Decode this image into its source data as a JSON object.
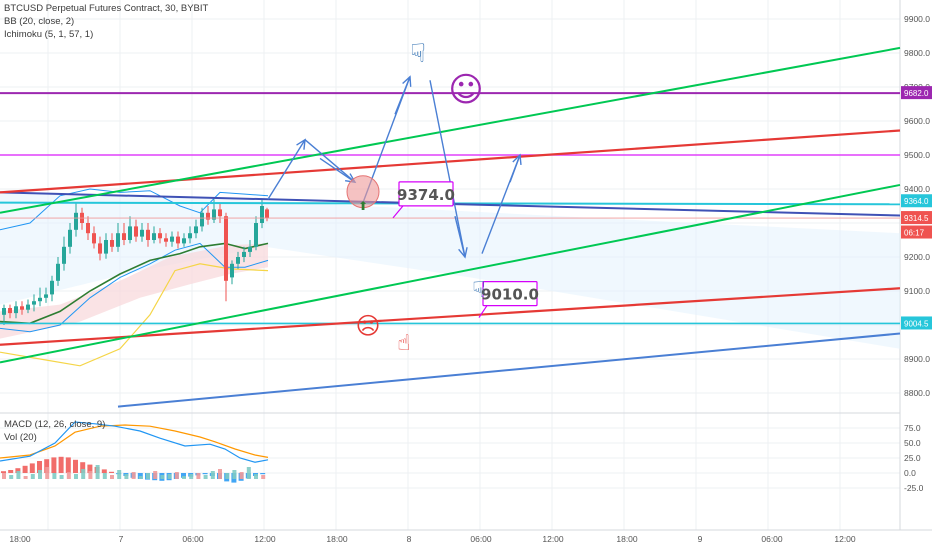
{
  "legend": {
    "symbol": "BTCUSD Perpetual Futures Contract, 30, BYBIT",
    "bb": "BB (20, close, 2)",
    "ichimoku": "Ichimoku (5, 1, 57, 1)",
    "macd": "MACD (12, 26, close, 9)",
    "vol": "Vol (20)"
  },
  "price_axis": {
    "ticks": [
      "9900.0",
      "9800.0",
      "9700.0",
      "9600.0",
      "9500.0",
      "9400.0",
      "9200.0",
      "9100.0",
      "9000.0",
      "8900.0",
      "8800.0"
    ],
    "tags": [
      {
        "text": "9682.0",
        "color": "#9c27b0",
        "price": 9682
      },
      {
        "text": "9364.0",
        "color": "#26c6da",
        "price": 9364
      },
      {
        "text": "9314.5",
        "color": "#ef5350",
        "price": 9314.5
      },
      {
        "text": "06:17",
        "color": "#ef5350",
        "price": 9272
      },
      {
        "text": "9004.5",
        "color": "#26c6da",
        "price": 9004.5
      }
    ]
  },
  "macd_axis": {
    "ticks": [
      "75.0",
      "50.0",
      "25.0",
      "0.0",
      "-25.0"
    ]
  },
  "time_axis": {
    "labels": [
      {
        "text": "18:00",
        "x": 20
      },
      {
        "text": "7",
        "x": 121
      },
      {
        "text": "06:00",
        "x": 193
      },
      {
        "text": "12:00",
        "x": 265
      },
      {
        "text": "18:00",
        "x": 337
      },
      {
        "text": "8",
        "x": 409
      },
      {
        "text": "06:00",
        "x": 481
      },
      {
        "text": "12:00",
        "x": 553
      },
      {
        "text": "18:00",
        "x": 627
      },
      {
        "text": "9",
        "x": 700
      },
      {
        "text": "06:00",
        "x": 772
      },
      {
        "text": "12:00",
        "x": 845
      }
    ]
  },
  "annotations": {
    "callout_top": "9374.0",
    "callout_bottom": "9010.0"
  },
  "colors": {
    "bull": "#26a69a",
    "bear": "#ef5350",
    "purple_line": "#9c27b0",
    "magenta_line": "#e040fb",
    "cyan_line": "#26c6da",
    "green_line": "#00c853",
    "red_line": "#e53935",
    "blue_line": "#3f51b5",
    "steel_line": "#4a7fd4",
    "arrow": "#4a7fd4"
  },
  "icons": [
    "pointing-hand-icon",
    "smiley-face-icon",
    "frowning-face-icon",
    "arrow-up-icon"
  ],
  "chart_data": {
    "type": "candlestick",
    "ylim": [
      8750,
      9950
    ],
    "price_levels": [
      {
        "name": "resistance",
        "price": 9682
      },
      {
        "name": "resistance",
        "price": 9500
      },
      {
        "name": "support",
        "price": 9364
      },
      {
        "name": "support",
        "price": 9004.5
      }
    ],
    "last_price": 9314.5,
    "macd_ylim": [
      -30,
      90
    ]
  }
}
